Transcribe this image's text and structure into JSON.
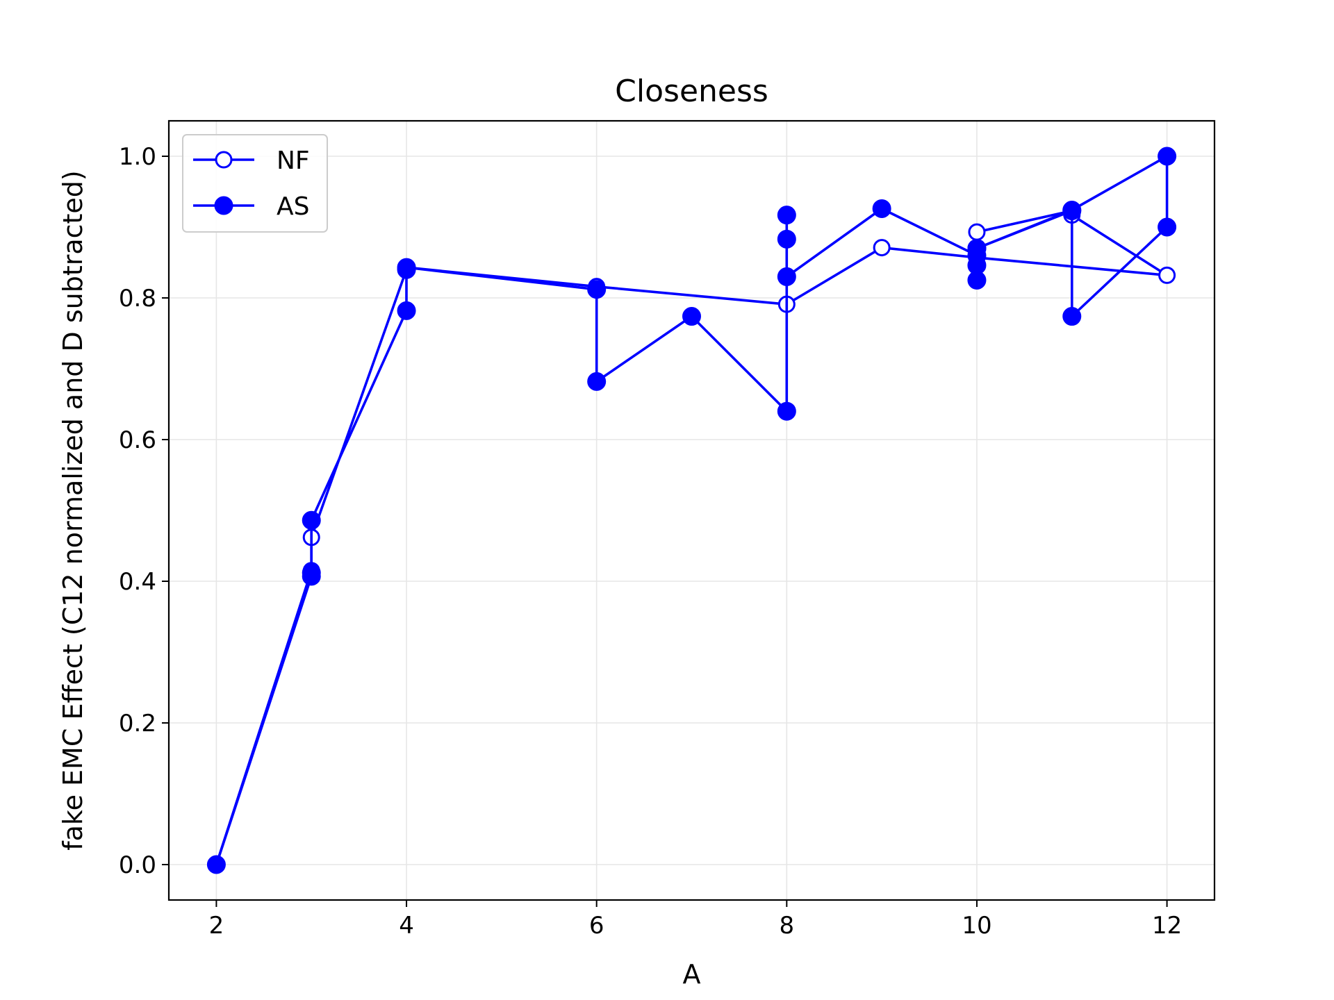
{
  "chart_data": {
    "type": "line",
    "title": "Closeness",
    "xlabel": "A",
    "ylabel": "fake EMC Effect (C12 normalized and D subtracted)",
    "xlim": [
      1.5,
      12.5
    ],
    "ylim": [
      -0.05,
      1.05
    ],
    "xticks": [
      2,
      4,
      6,
      8,
      10,
      12
    ],
    "xtick_labels": [
      "2",
      "4",
      "6",
      "8",
      "10",
      "12"
    ],
    "yticks": [
      0.0,
      0.2,
      0.4,
      0.6,
      0.8,
      1.0
    ],
    "ytick_labels": [
      "0.0",
      "0.2",
      "0.4",
      "0.6",
      "0.8",
      "1.0"
    ],
    "grid": true,
    "legend_position": "top-left",
    "series": [
      {
        "name": "NF",
        "marker": "open-circle",
        "color": "#0000ff",
        "x": [
          2,
          3,
          3,
          4,
          4,
          6,
          8,
          9,
          10,
          12,
          11,
          11,
          10
        ],
        "y": [
          0.0,
          0.415,
          0.462,
          0.84,
          0.843,
          0.816,
          0.791,
          0.871,
          0.857,
          0.832,
          0.917,
          0.923,
          0.893
        ]
      },
      {
        "name": "AS",
        "marker": "filled-circle",
        "color": "#0000ff",
        "x": [
          2,
          3,
          3,
          3,
          4,
          4,
          4,
          6,
          6,
          7,
          8,
          8,
          8,
          8,
          9,
          10,
          10,
          10,
          10,
          11,
          11,
          12,
          12,
          11,
          10
        ],
        "y": [
          0.0,
          0.407,
          0.412,
          0.486,
          0.782,
          0.84,
          0.843,
          0.812,
          0.682,
          0.774,
          0.64,
          0.917,
          0.883,
          0.83,
          0.926,
          0.86,
          0.846,
          0.825,
          0.87,
          0.923,
          0.774,
          0.9,
          1.0,
          0.924,
          0.87
        ]
      }
    ]
  }
}
